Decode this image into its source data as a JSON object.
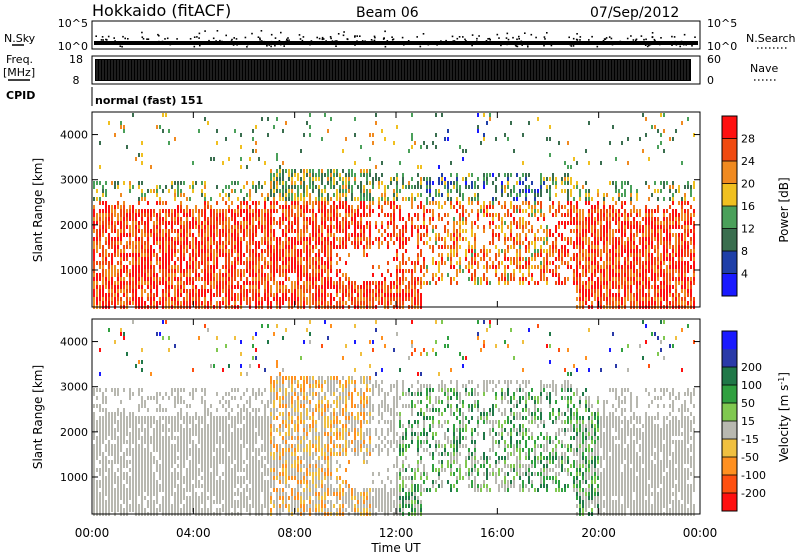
{
  "header": {
    "station": "Hokkaido (fitACF)",
    "beam": "Beam 06",
    "date": "07/Sep/2012"
  },
  "sky_panel": {
    "left_label": "N.Sky",
    "ticks_left": [
      "10^5",
      "10^0"
    ],
    "right_label": "N.Search",
    "ticks_right": [
      "10^5",
      "10^0"
    ]
  },
  "freq_panel": {
    "left_label_1": "Freq.",
    "left_label_2": "[MHz]",
    "ticks_left": [
      "18",
      "8"
    ],
    "right_label": "Nave",
    "ticks_right": [
      "60",
      "0"
    ]
  },
  "cpid": {
    "label": "CPID",
    "value": "normal (fast) 151"
  },
  "x_axis": {
    "label": "Time UT",
    "ticks": [
      "00:00",
      "04:00",
      "08:00",
      "12:00",
      "16:00",
      "20:00",
      "00:00"
    ]
  },
  "colors": {
    "power_scale": [
      "#1a1aff",
      "#1f3fa8",
      "#3a6e4f",
      "#4aa05a",
      "#f0c020",
      "#f08a20",
      "#f04a10",
      "#ff1010"
    ],
    "velocity_scale": [
      "#ff1010",
      "#ff5010",
      "#ff9020",
      "#f0c040",
      "#b8b8b0",
      "#80c850",
      "#30a040",
      "#207848",
      "#2a3aa8",
      "#1a1aff"
    ]
  },
  "chart_data": [
    {
      "type": "heatmap",
      "panel": "power",
      "ylabel": "Slant Range [km]",
      "yticks": [
        1000,
        2000,
        3000,
        4000
      ],
      "ylim": [
        180,
        4500
      ],
      "xlim_hours": [
        0,
        24
      ],
      "colorbar_label": "Power [dB]",
      "colorbar_ticks": [
        4,
        8,
        12,
        16,
        20,
        24,
        28
      ],
      "colorbar_range": [
        0,
        32
      ]
    },
    {
      "type": "heatmap",
      "panel": "velocity",
      "ylabel": "Slant Range [km]",
      "yticks": [
        1000,
        2000,
        3000,
        4000
      ],
      "ylim": [
        180,
        4500
      ],
      "xlim_hours": [
        0,
        24
      ],
      "colorbar_label": "Velocity [m s^-1]",
      "colorbar_ticks": [
        -200,
        -100,
        -50,
        -15,
        15,
        50,
        100,
        200
      ]
    }
  ]
}
